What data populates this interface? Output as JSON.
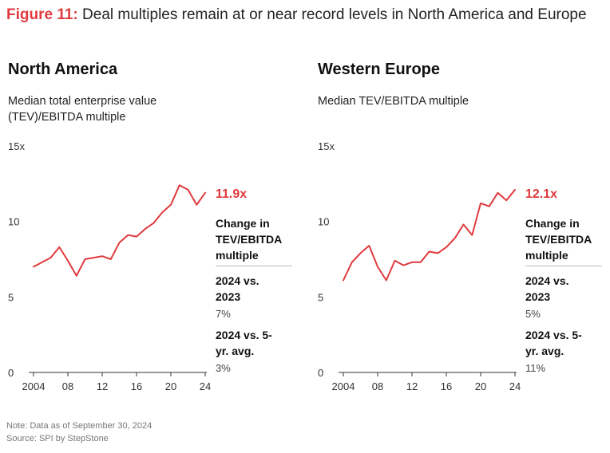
{
  "figure": {
    "title_lead": "Figure 11:",
    "title_rest": " Deal multiples remain at or near record levels in North America and Europe"
  },
  "accent_color": "#e03a3e",
  "chart_data": [
    {
      "type": "line",
      "title": "North America",
      "subtitle": "Median total enterprise value (TEV)/EBITDA multiple",
      "x": [
        2004,
        2005,
        2006,
        2007,
        2008,
        2009,
        2010,
        2011,
        2012,
        2013,
        2014,
        2015,
        2016,
        2017,
        2018,
        2019,
        2020,
        2021,
        2022,
        2023,
        2024
      ],
      "series": [
        {
          "values": [
            7.0,
            7.3,
            7.6,
            8.3,
            7.4,
            6.4,
            7.5,
            7.6,
            7.7,
            7.5,
            8.6,
            9.1,
            9.0,
            9.5,
            9.9,
            10.6,
            11.1,
            12.4,
            12.1,
            11.1,
            11.9
          ]
        }
      ],
      "latest_label": "11.9x",
      "y_ticks": [
        "15x",
        "10",
        "5",
        "0"
      ],
      "x_ticks": [
        "2004",
        "08",
        "12",
        "16",
        "20",
        "24"
      ],
      "ylim": [
        0,
        15
      ],
      "xlim": [
        2004,
        2024
      ],
      "change_header": "Change in TEV/EBITDA multiple",
      "comparisons": [
        {
          "label": "2024 vs. 2023",
          "value": "7%"
        },
        {
          "label": "2024 vs. 5-yr. avg.",
          "value": "3%"
        }
      ]
    },
    {
      "type": "line",
      "title": "Western Europe",
      "subtitle": "Median TEV/EBITDA multiple",
      "x": [
        2004,
        2005,
        2006,
        2007,
        2008,
        2009,
        2010,
        2011,
        2012,
        2013,
        2014,
        2015,
        2016,
        2017,
        2018,
        2019,
        2020,
        2021,
        2022,
        2023,
        2024
      ],
      "series": [
        {
          "values": [
            6.1,
            7.3,
            7.9,
            8.4,
            7.0,
            6.1,
            7.4,
            7.1,
            7.3,
            7.3,
            8.0,
            7.9,
            8.3,
            8.9,
            9.8,
            9.1,
            11.2,
            11.0,
            11.9,
            11.4,
            12.1
          ]
        }
      ],
      "latest_label": "12.1x",
      "y_ticks": [
        "15x",
        "10",
        "5",
        "0"
      ],
      "x_ticks": [
        "2004",
        "08",
        "12",
        "16",
        "20",
        "24"
      ],
      "ylim": [
        0,
        15
      ],
      "xlim": [
        2004,
        2024
      ],
      "change_header": "Change in TEV/EBITDA multiple",
      "comparisons": [
        {
          "label": "2024 vs. 2023",
          "value": "5%"
        },
        {
          "label": "2024 vs. 5-yr. avg.",
          "value": "11%"
        }
      ]
    }
  ],
  "notes": {
    "note": "Note: Data as of September 30, 2024",
    "source": "Source: SPI by StepStone"
  }
}
